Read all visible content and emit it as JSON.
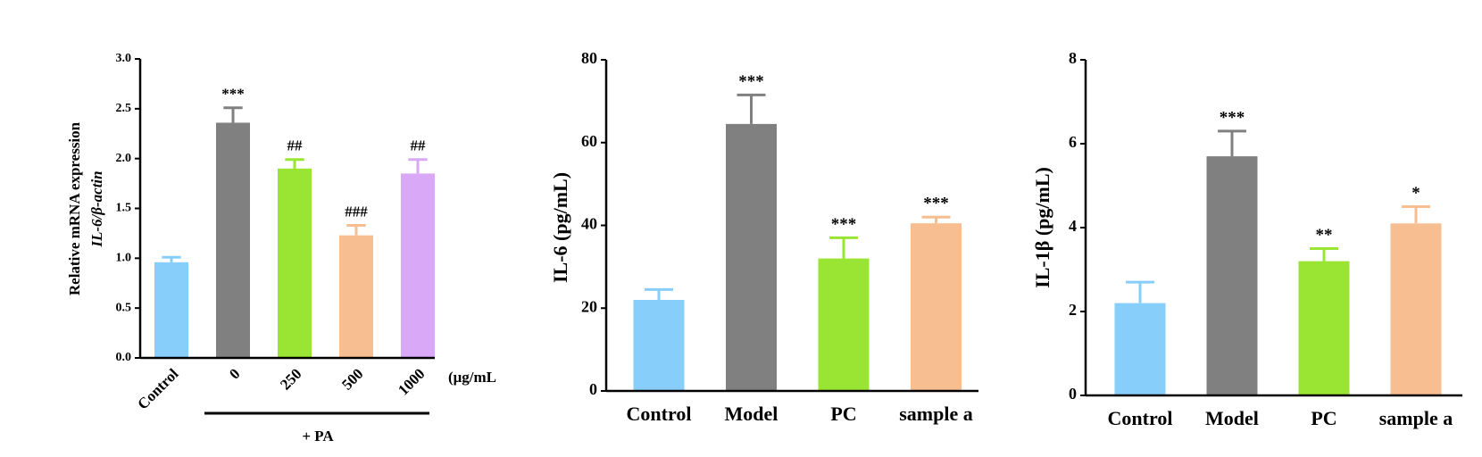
{
  "chart_data": [
    {
      "type": "bar",
      "ylabel": "Relative mRNA expression",
      "ylabel2": "IL-6/β-actin",
      "categories": [
        "Control",
        "0",
        "250",
        "500",
        "1000"
      ],
      "values": [
        0.96,
        2.36,
        1.9,
        1.23,
        1.85
      ],
      "errors": [
        0.05,
        0.15,
        0.09,
        0.1,
        0.14
      ],
      "colors": [
        "#87cefa",
        "#808080",
        "#9ae534",
        "#f7be91",
        "#d9a9f7"
      ],
      "annotations": [
        null,
        "***",
        "##",
        "###",
        "##"
      ],
      "unit": "(μg/mL",
      "group_label": "+ PA",
      "ylim": [
        0,
        3
      ],
      "yticks": [
        {
          "value": 0,
          "label": "0.0"
        },
        0.5,
        {
          "value": 1,
          "label": "1.0"
        },
        1.5,
        {
          "value": 2,
          "label": "2.0"
        },
        2.5,
        {
          "value": 3,
          "label": "3.0"
        }
      ]
    },
    {
      "type": "bar",
      "ylabel": "IL-6 (pg/mL)",
      "categories": [
        "Control",
        "Model",
        "PC",
        "sample a"
      ],
      "values": [
        22,
        64.5,
        32,
        40.5
      ],
      "errors": [
        2.5,
        7,
        5,
        1.5
      ],
      "colors": [
        "#87cefa",
        "#808080",
        "#9ae534",
        "#f7be91"
      ],
      "annotations": [
        null,
        "***",
        "***",
        "***"
      ],
      "ylim": [
        0,
        80
      ],
      "yticks": [
        0,
        20,
        40,
        60,
        80
      ]
    },
    {
      "type": "bar",
      "ylabel": "IL-1β (pg/mL)",
      "categories": [
        "Control",
        "Model",
        "PC",
        "sample a"
      ],
      "values": [
        2.2,
        5.7,
        3.2,
        4.1
      ],
      "errors": [
        0.5,
        0.6,
        0.3,
        0.4
      ],
      "colors": [
        "#87cefa",
        "#808080",
        "#9ae534",
        "#f7be91"
      ],
      "annotations": [
        null,
        "***",
        "**",
        "*"
      ],
      "ylim": [
        0,
        8
      ],
      "yticks": [
        0,
        2,
        4,
        6,
        8
      ]
    }
  ]
}
